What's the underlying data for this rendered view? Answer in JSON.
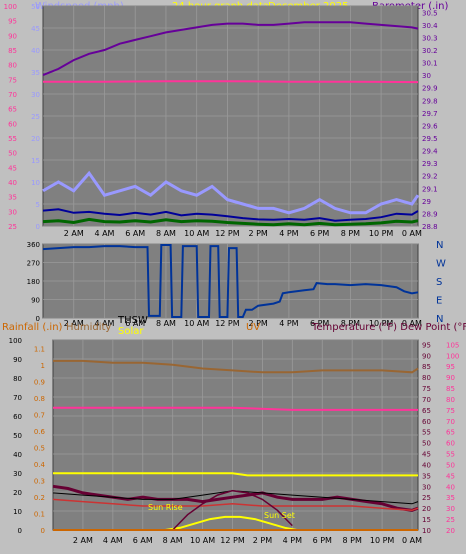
{
  "colors": {
    "panel": "#808080",
    "grid": "#9a9a9a",
    "frame": "#c0c0c0",
    "windspeed": "#9999ff",
    "gust": "#000099",
    "windgreen": "#006600",
    "barometer": "#660099",
    "pink": "#ff3399",
    "direction": "#003399",
    "rainfall": "#cc6600",
    "humidity": "#996633",
    "thsw": "#000000",
    "solar": "#ffff00",
    "uv": "#cc6600",
    "temperature": "#660033",
    "dewpoint": "#cc0066",
    "hilo": "#cc3333",
    "yellow": "#ffff00"
  },
  "header": {
    "windspeed_label": "Windspeed (mph)",
    "period_label": "24 hour graph data",
    "date_label": "December 2025",
    "barometer_label": "Barometer (.in)"
  },
  "bottom_header": {
    "rainfall_label": "Rainfall (.in)",
    "humidity_label": "Humidity",
    "thsw_label": "THSW",
    "solar_label": "Solar",
    "uv_label": "UV",
    "temperature_label": "Temperature (°F) Dew Point (°F)",
    "sunrise_label": "Sun Rise",
    "sunset_label": "Sun Set"
  },
  "chart_data": [
    {
      "name": "wind-barometer",
      "type": "line",
      "x_ticks": [
        "2 AM",
        "4 AM",
        "6 AM",
        "8 AM",
        "10 AM",
        "12 PM",
        "2 PM",
        "4 PM",
        "6 PM",
        "8 PM",
        "10 PM",
        "0 AM"
      ],
      "xlim": [
        0,
        24.4
      ],
      "y_left": {
        "ticks": [
          "0",
          "5",
          "10",
          "15",
          "20",
          "25",
          "30",
          "35",
          "40",
          "45",
          "50"
        ],
        "ylim": [
          0,
          50
        ]
      },
      "y_left_outer": {
        "ticks": [
          "25",
          "30",
          "35",
          "40",
          "45",
          "50",
          "55",
          "60",
          "65",
          "70",
          "75",
          "80",
          "85",
          "90",
          "95",
          "100"
        ],
        "ylim": [
          25,
          100
        ]
      },
      "y_right": {
        "ticks": [
          "28.8",
          "28.9",
          "29",
          "29.1",
          "29.2",
          "29.3",
          "29.4",
          "29.5",
          "29.6",
          "29.7",
          "29.8",
          "29.9",
          "30",
          "30.1",
          "30.2",
          "30.3",
          "30.4",
          "30.5"
        ],
        "ylim": [
          28.8,
          30.55
        ]
      },
      "series": [
        {
          "name": "Barometer",
          "axis": "right",
          "x": [
            0,
            1,
            2,
            3,
            4,
            5,
            6,
            7,
            8,
            9,
            10,
            11,
            12,
            13,
            14,
            15,
            16,
            17,
            18,
            19,
            20,
            21,
            22,
            23,
            24,
            24.4
          ],
          "y": [
            30.0,
            30.05,
            30.12,
            30.17,
            30.2,
            30.25,
            30.28,
            30.31,
            30.34,
            30.36,
            30.38,
            30.4,
            30.41,
            30.41,
            30.4,
            30.4,
            30.41,
            30.42,
            30.42,
            30.42,
            30.42,
            30.41,
            30.4,
            30.39,
            30.38,
            30.37
          ]
        },
        {
          "x": [
            0,
            4,
            8,
            12,
            16,
            20,
            24.4
          ],
          "y": [
            32.8,
            32.8,
            32.9,
            32.9,
            32.8,
            32.8,
            32.7
          ],
          "axis": "left"
        },
        {
          "name": "Windspeed",
          "axis": "left",
          "x": [
            0,
            1,
            2,
            3,
            4,
            5,
            6,
            7,
            8,
            9,
            10,
            11,
            12,
            13,
            14,
            15,
            16,
            17,
            18,
            19,
            20,
            21,
            22,
            23,
            24,
            24.4
          ],
          "y": [
            8,
            10,
            8,
            12,
            7,
            8,
            9,
            7,
            10,
            8,
            7,
            9,
            6,
            5,
            4,
            4,
            3,
            4,
            6,
            4,
            3,
            3,
            5,
            6,
            5,
            7
          ]
        },
        {
          "axis": "left",
          "x": [
            0,
            1,
            2,
            3,
            4,
            5,
            6,
            7,
            8,
            9,
            10,
            11,
            12,
            13,
            14,
            15,
            16,
            17,
            18,
            19,
            20,
            21,
            22,
            23,
            24,
            24.4
          ],
          "y": [
            3.5,
            3.8,
            3.0,
            3.2,
            2.8,
            2.5,
            3.0,
            2.6,
            3.2,
            2.4,
            2.8,
            2.6,
            2.2,
            1.8,
            1.5,
            1.4,
            1.6,
            1.4,
            1.8,
            1.2,
            1.4,
            1.6,
            2.0,
            2.8,
            2.6,
            3.4
          ]
        },
        {
          "axis": "left",
          "x": [
            0,
            1,
            2,
            3,
            4,
            5,
            6,
            7,
            8,
            9,
            10,
            11,
            12,
            13,
            14,
            15,
            16,
            17,
            18,
            19,
            20,
            21,
            22,
            23,
            24,
            24.4
          ],
          "y": [
            1.0,
            1.2,
            0.8,
            1.5,
            1.0,
            0.9,
            1.2,
            0.9,
            1.4,
            1.0,
            1.2,
            1.1,
            0.8,
            0.6,
            0.4,
            0.3,
            0.5,
            0.3,
            0.6,
            0.3,
            0.4,
            0.5,
            0.7,
            1.1,
            0.9,
            1.2
          ]
        }
      ]
    },
    {
      "name": "wind-direction",
      "type": "line",
      "x_ticks": [
        "2 AM",
        "4 AM",
        "6 AM",
        "8 AM",
        "10 AM",
        "12 PM",
        "2 PM",
        "4 PM",
        "6 PM",
        "8 PM",
        "10 PM",
        "0 AM"
      ],
      "xlim": [
        0,
        24.4
      ],
      "y": {
        "ticks": [
          "0",
          "90",
          "180",
          "270",
          "360"
        ],
        "ylim": [
          0,
          360
        ]
      },
      "y_right_labels": [
        "N",
        "W",
        "S",
        "E",
        "N"
      ],
      "series": [
        {
          "name": "Direction",
          "x": [
            0,
            1,
            2,
            3,
            4,
            5,
            6,
            6.8,
            6.9,
            7.6,
            7.7,
            8.3,
            8.4,
            9.0,
            9.1,
            10.0,
            10.1,
            10.8,
            10.9,
            11.4,
            11.5,
            12.0,
            12.1,
            12.6,
            12.7,
            13.0,
            13.2,
            13.6,
            14,
            15,
            15.4,
            15.6,
            16,
            17,
            17.6,
            17.8,
            18.5,
            19,
            20,
            21,
            22,
            23,
            23.5,
            24,
            24.4
          ],
          "y": [
            335,
            340,
            345,
            345,
            350,
            350,
            345,
            345,
            10,
            10,
            355,
            355,
            5,
            5,
            350,
            350,
            5,
            5,
            350,
            350,
            5,
            5,
            340,
            340,
            5,
            5,
            40,
            40,
            60,
            70,
            80,
            120,
            125,
            135,
            140,
            170,
            165,
            165,
            160,
            165,
            160,
            150,
            130,
            120,
            125
          ]
        }
      ]
    },
    {
      "name": "temperature-humidity-rain",
      "type": "line",
      "x_ticks": [
        "2 AM",
        "4 AM",
        "6 AM",
        "8 AM",
        "10 AM",
        "12 PM",
        "2 PM",
        "4 PM",
        "6 PM",
        "8 PM",
        "10 PM",
        "0 AM"
      ],
      "xlim": [
        0,
        24.4
      ],
      "y_humidity": {
        "ticks": [
          "0",
          "10",
          "20",
          "30",
          "40",
          "50",
          "60",
          "70",
          "80",
          "90",
          "100"
        ],
        "ylim": [
          0,
          100
        ]
      },
      "y_rain": {
        "ticks": [
          "0",
          "0.1",
          "0.2",
          "0.3",
          "0.4",
          "0.5",
          "0.6",
          "0.7",
          "0.8",
          "0.9",
          "1",
          "1.1"
        ],
        "ylim": [
          0,
          1.15
        ]
      },
      "y_temperature": {
        "ticks": [
          "10",
          "15",
          "20",
          "25",
          "30",
          "35",
          "40",
          "45",
          "50",
          "55",
          "60",
          "65",
          "70",
          "75",
          "80",
          "85",
          "90",
          "95"
        ],
        "ylim": [
          10,
          97
        ]
      },
      "y_outer_right": {
        "ticks": [
          "20",
          "25",
          "30",
          "35",
          "40",
          "45",
          "50",
          "55",
          "60",
          "65",
          "70",
          "75",
          "80",
          "85",
          "90",
          "95",
          "100",
          "105"
        ],
        "ylim": [
          20,
          107
        ]
      },
      "series": [
        {
          "name": "Humidity",
          "axis": "humidity",
          "x": [
            0,
            2,
            4,
            6,
            8,
            10,
            12,
            14,
            16,
            18,
            20,
            22,
            24,
            24.4
          ],
          "y": [
            89,
            89,
            88,
            88,
            87,
            85,
            84,
            83,
            83,
            84,
            84,
            84,
            83,
            85
          ]
        },
        {
          "axis": "temperature",
          "x": [
            0,
            4,
            8,
            12,
            16,
            20,
            24.4
          ],
          "y": [
            66,
            66,
            66,
            66,
            65,
            65,
            65
          ]
        },
        {
          "axis": "temperature",
          "x": [
            0,
            12,
            13,
            24.4
          ],
          "y": [
            36,
            36,
            35,
            35
          ]
        },
        {
          "name": "Temperature",
          "axis": "temperature",
          "x": [
            0,
            1,
            2,
            3,
            4,
            5,
            6,
            7,
            8,
            9,
            10,
            11,
            12,
            13,
            14,
            15,
            16,
            17,
            18,
            19,
            20,
            21,
            22,
            23,
            24,
            24.4
          ],
          "y": [
            30,
            29,
            27,
            26,
            25,
            24,
            25,
            24,
            24,
            24,
            23,
            24,
            25,
            26,
            27,
            25,
            24,
            24,
            24,
            25,
            24,
            23,
            22,
            20,
            19,
            20
          ]
        },
        {
          "name": "Dew Point",
          "axis": "temperature",
          "x": [
            0,
            2,
            4,
            6,
            8,
            10,
            12,
            14,
            16,
            18,
            20,
            22,
            24,
            24.4
          ],
          "y": [
            24,
            23,
            22,
            21,
            21,
            21,
            22,
            21,
            21,
            21,
            21,
            20,
            19,
            20
          ]
        },
        {
          "name": "THSW",
          "axis": "temperature",
          "x": [
            0,
            2,
            4,
            6,
            8,
            10,
            12,
            14,
            16,
            18,
            20,
            22,
            24,
            24.4
          ],
          "y": [
            27,
            26,
            25,
            24,
            24,
            26,
            28,
            27,
            26,
            25,
            24,
            23,
            22,
            23
          ]
        },
        {
          "name": "Solar",
          "axis": "temperature",
          "x": [
            7.5,
            8.5,
            9.5,
            10.5,
            11.5,
            12.5,
            13.5,
            14.5,
            15.5,
            16.3
          ],
          "y": [
            10,
            11,
            13,
            15,
            16,
            16,
            15,
            13,
            11,
            10
          ]
        },
        {
          "name": "UV",
          "axis": "temperature",
          "x": [
            8,
            9,
            10,
            11,
            12,
            13,
            14,
            15,
            16
          ],
          "y": [
            10,
            17,
            22,
            26,
            28,
            27,
            24,
            19,
            12
          ]
        },
        {
          "name": "Rainfall",
          "axis": "rain",
          "x": [
            0,
            24.4
          ],
          "y": [
            0,
            0
          ]
        }
      ]
    }
  ]
}
